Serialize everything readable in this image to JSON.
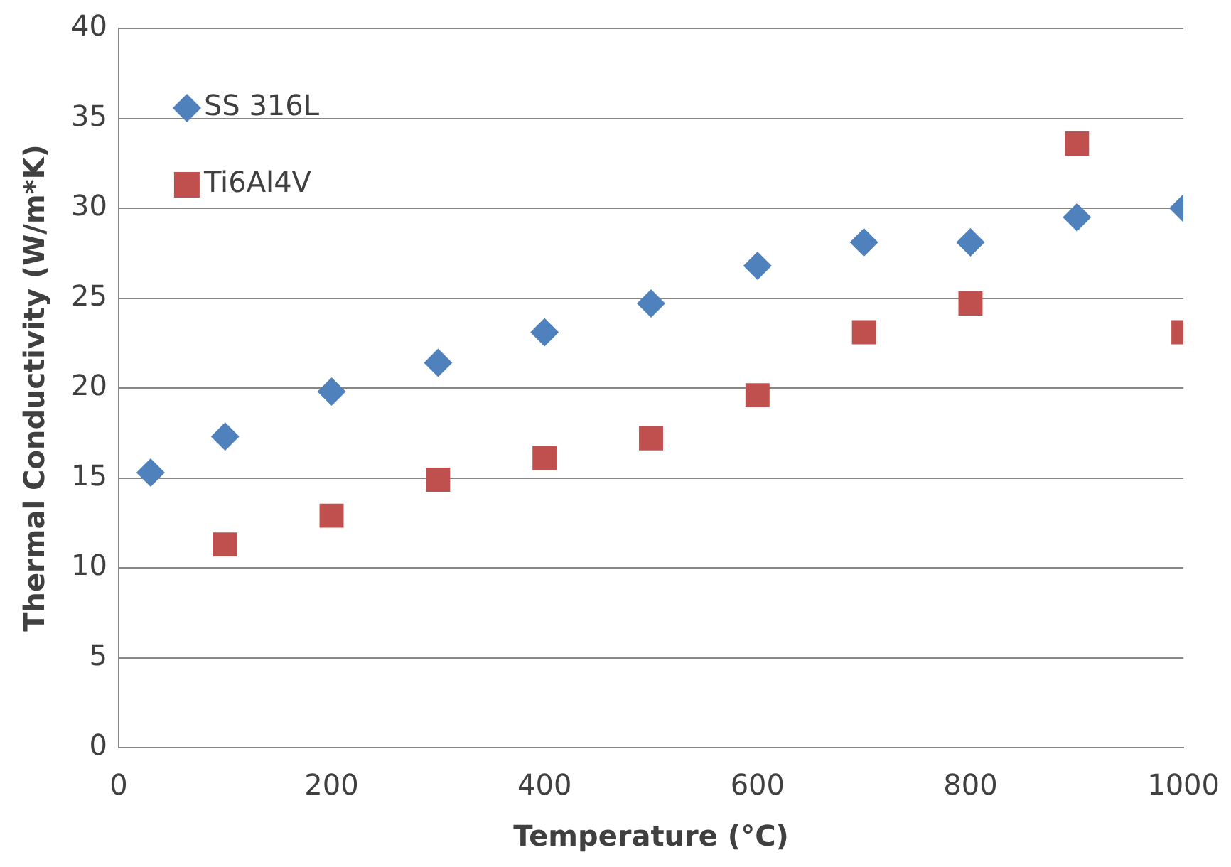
{
  "chart_data": {
    "type": "scatter",
    "xlabel": "Temperature (°C)",
    "ylabel": "Thermal Conductivity (W/m*K)",
    "xlim": [
      0,
      1000
    ],
    "xticks": [
      0,
      200,
      400,
      600,
      800,
      1000
    ],
    "ylim": [
      0,
      40
    ],
    "yticks": [
      0,
      5,
      10,
      15,
      20,
      25,
      30,
      35,
      40
    ],
    "grid": "y",
    "legend": "top left",
    "series": [
      {
        "name": "SS 316L",
        "color": "#4f81bd",
        "marker": "diamond",
        "x": [
          30,
          100,
          200,
          300,
          400,
          500,
          600,
          700,
          800,
          900,
          1000
        ],
        "values": [
          15.3,
          17.3,
          19.8,
          21.4,
          23.1,
          24.7,
          26.8,
          28.1,
          28.1,
          29.5,
          30.0
        ]
      },
      {
        "name": "Ti6Al4V",
        "color": "#c0504d",
        "marker": "square",
        "x": [
          100,
          200,
          300,
          400,
          500,
          600,
          700,
          800,
          900,
          1000
        ],
        "values": [
          11.3,
          12.9,
          14.9,
          16.1,
          17.2,
          19.6,
          23.1,
          24.7,
          33.6,
          23.1
        ]
      }
    ]
  }
}
